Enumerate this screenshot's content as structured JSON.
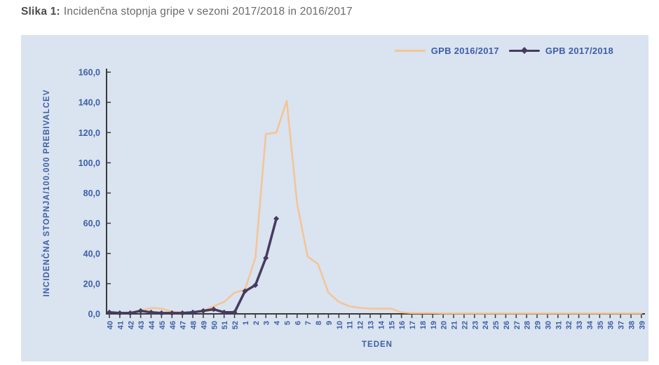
{
  "figure": {
    "label": "Slika 1:",
    "title": "Incidenčna stopnja gripe v sezoni 2017/2018 in 2016/2017"
  },
  "colors": {
    "panel_background": "#dae3f0",
    "axis": "#3a3a3a",
    "tick_text": "#3c5fa6",
    "series_2016": "#f5c493",
    "series_2017": "#463b5e"
  },
  "chart_data": {
    "type": "line",
    "title": "Incidenčna stopnja gripe v sezoni 2017/2018 in 2016/2017",
    "xlabel": "TEDEN",
    "ylabel": "INCIDENČNA STOPNJA/100.000 PREBIVALCEV",
    "ylim": [
      0,
      160
    ],
    "y_tick_step": 20,
    "y_ticks": [
      "0,0",
      "20,0",
      "40,0",
      "60,0",
      "80,0",
      "100,0",
      "120,0",
      "140,0",
      "160,0"
    ],
    "grid": false,
    "legend_position": "top-right",
    "x_categories": [
      "40",
      "41",
      "42",
      "43",
      "44",
      "45",
      "46",
      "47",
      "48",
      "49",
      "50",
      "51",
      "52",
      "1",
      "2",
      "3",
      "4",
      "5",
      "6",
      "7",
      "8",
      "9",
      "10",
      "11",
      "12",
      "13",
      "14",
      "15",
      "16",
      "17",
      "18",
      "19",
      "20",
      "21",
      "22",
      "23",
      "24",
      "25",
      "26",
      "27",
      "28",
      "29",
      "30",
      "31",
      "32",
      "33",
      "34",
      "35",
      "36",
      "37",
      "38",
      "39"
    ],
    "series": [
      {
        "name": "GPB 2016/2017",
        "color": "#f5c493",
        "marker": "none",
        "line_width": 2.5,
        "values": [
          1,
          0.5,
          1,
          2,
          4,
          3.5,
          1.5,
          1,
          1,
          2,
          5,
          8,
          14,
          16,
          37,
          119,
          120,
          141,
          73,
          38,
          33,
          14,
          8,
          5,
          4,
          3.5,
          3.5,
          3.5,
          1,
          0.5,
          0.5,
          0.5,
          0.3,
          0.3,
          0.3,
          0.3,
          0.3,
          0.3,
          0.3,
          0.3,
          0.3,
          0.3,
          0.3,
          0.3,
          0.3,
          0.3,
          0.3,
          0.3,
          0.3,
          0.3,
          0.3,
          0.3
        ]
      },
      {
        "name": "GPB 2017/2018",
        "color": "#463b5e",
        "marker": "diamond",
        "line_width": 3.5,
        "values": [
          1,
          0.5,
          0.5,
          2,
          1,
          0.5,
          0.5,
          0.5,
          1,
          2,
          3,
          1,
          1,
          15,
          19,
          37,
          63
        ]
      }
    ]
  }
}
